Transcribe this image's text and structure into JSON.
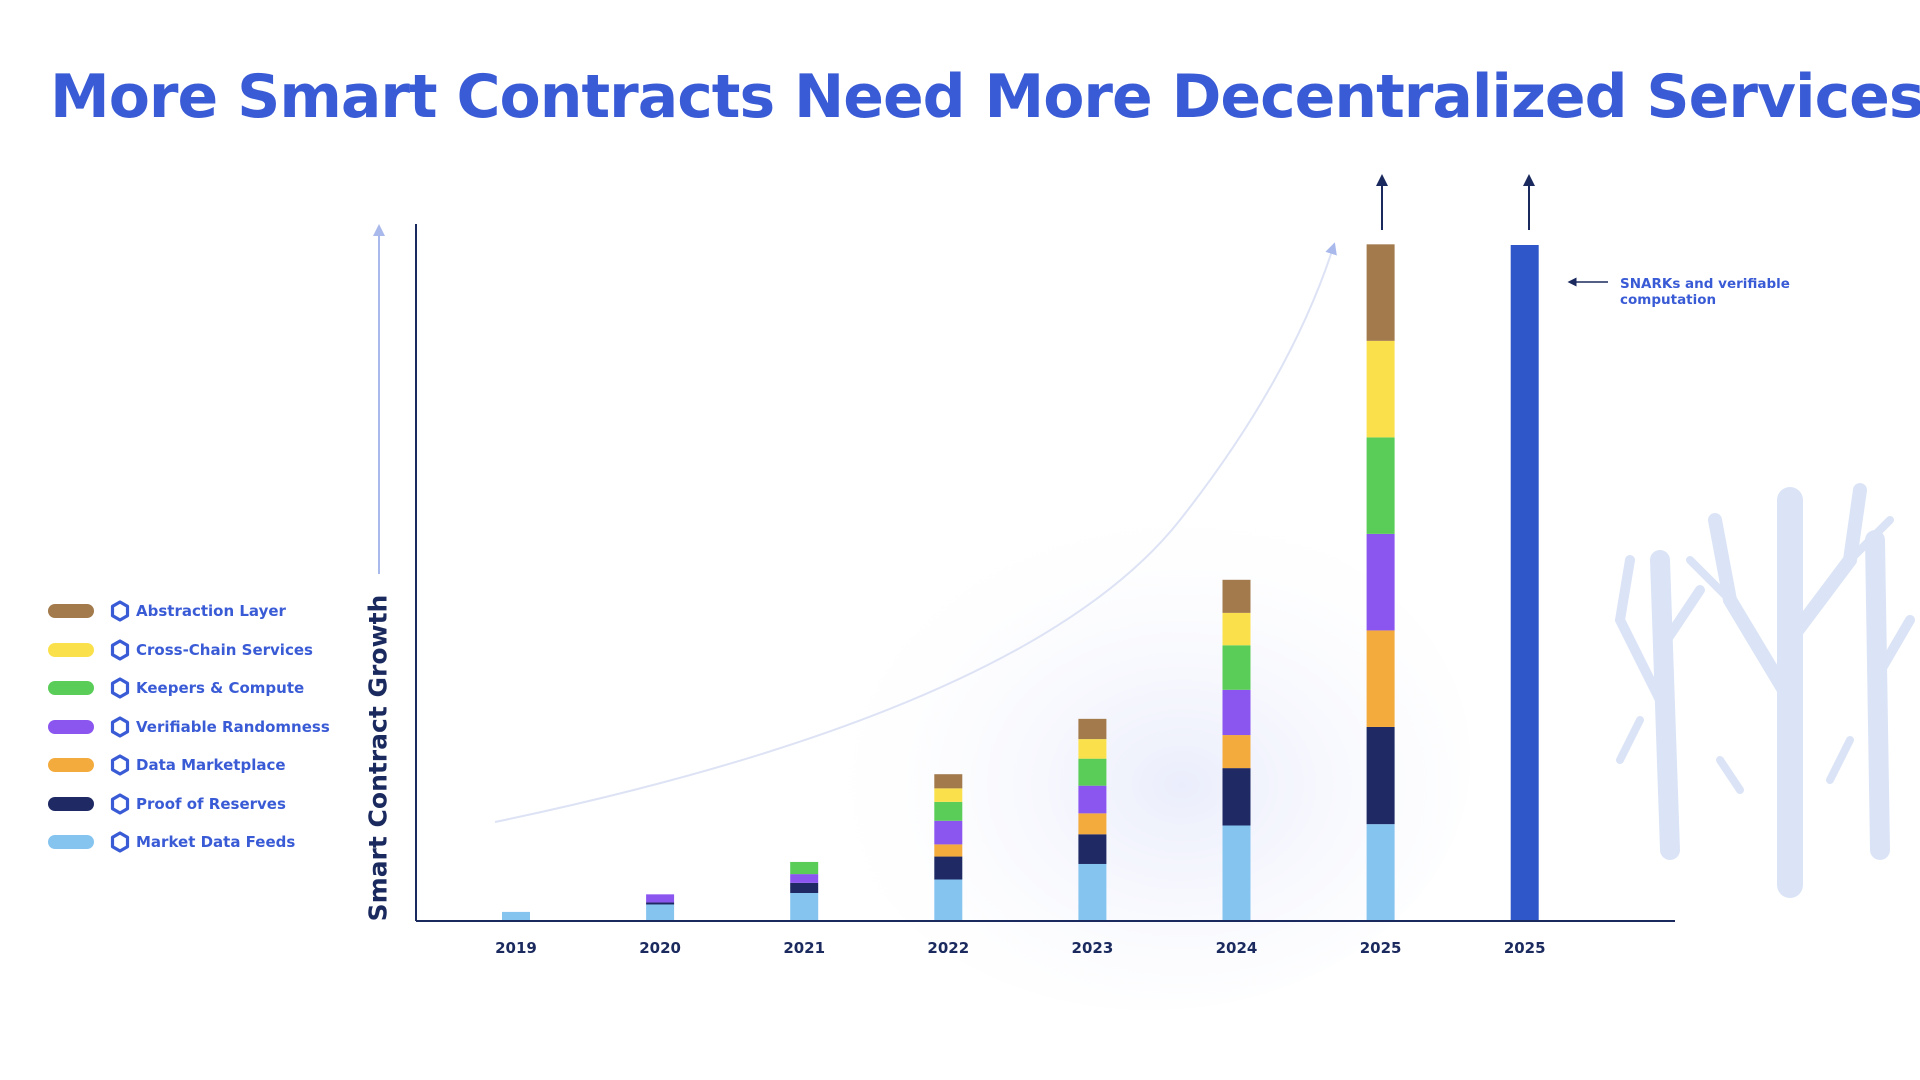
{
  "chart_data": {
    "type": "bar",
    "stacked": true,
    "title": "More Smart Contracts Need More Decentralized Services",
    "ylabel": "Smart Contract Growth",
    "xlabel": "",
    "categories": [
      "2019",
      "2020",
      "2021",
      "2022",
      "2023",
      "2024",
      "2025",
      "2025"
    ],
    "ylim": [
      0,
      100
    ],
    "grid": false,
    "legend_position": "left",
    "series": [
      {
        "name": "Market Data Feeds",
        "color": "#86c4f0",
        "values": [
          1.2,
          2.3,
          4.0,
          6.0,
          8.3,
          14.0,
          14.2,
          0
        ]
      },
      {
        "name": "Proof of Reserves",
        "color": "#1f2a64",
        "values": [
          0,
          0.3,
          1.5,
          3.4,
          4.4,
          8.5,
          14.4,
          0
        ]
      },
      {
        "name": "Data Marketplace",
        "color": "#f4ab3e",
        "values": [
          0,
          0,
          0,
          1.8,
          3.1,
          4.9,
          14.3,
          0
        ]
      },
      {
        "name": "Verifiable Randomness",
        "color": "#8b55f0",
        "values": [
          0,
          1.2,
          1.3,
          3.5,
          4.1,
          6.7,
          14.3,
          0
        ]
      },
      {
        "name": "Keepers & Compute",
        "color": "#5acd58",
        "values": [
          0,
          0,
          1.8,
          2.8,
          4.0,
          6.6,
          14.3,
          0
        ]
      },
      {
        "name": "Cross-Chain Services",
        "color": "#fae14c",
        "values": [
          0,
          0,
          0,
          2.0,
          2.9,
          4.8,
          14.3,
          0
        ]
      },
      {
        "name": "Abstraction Layer",
        "color": "#a27a4c",
        "values": [
          0,
          0,
          0,
          2.1,
          3.0,
          4.9,
          14.3,
          0
        ]
      },
      {
        "name": "SNARKs and verifiable computation",
        "color": "#2f57c9",
        "values": [
          0,
          0,
          0,
          0,
          0,
          0,
          0,
          100
        ]
      }
    ],
    "annotations": [
      {
        "text": "SNARKs and verifiable computation",
        "target_category_index": 7
      }
    ]
  },
  "legend": {
    "items": [
      {
        "label": "Abstraction Layer",
        "color": "#a27a4c"
      },
      {
        "label": "Cross-Chain Services",
        "color": "#fae14c"
      },
      {
        "label": "Keepers & Compute",
        "color": "#5acd58"
      },
      {
        "label": "Verifiable Randomness",
        "color": "#8b55f0"
      },
      {
        "label": "Data Marketplace",
        "color": "#f4ab3e"
      },
      {
        "label": "Proof of Reserves",
        "color": "#1f2a64"
      },
      {
        "label": "Market Data Feeds",
        "color": "#86c4f0"
      }
    ],
    "icon": "chainlink-hexagon-icon",
    "icon_color": "#3a5bd6"
  },
  "colors": {
    "title": "#3a5bd6",
    "axis": "#1b2a5e",
    "trend_curve": "#dde3f5",
    "decor_trees": "#dbe4f6"
  }
}
